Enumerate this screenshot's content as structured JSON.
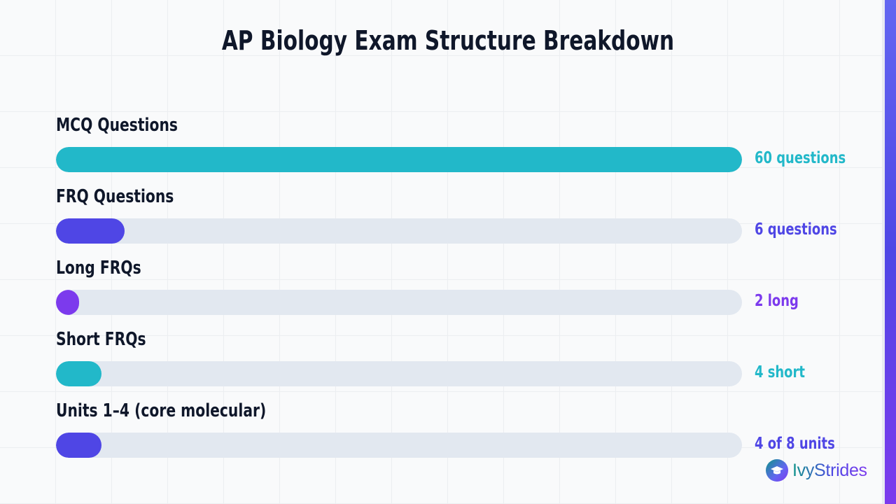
{
  "chart_data": {
    "type": "bar",
    "orientation": "horizontal",
    "title": "AP Biology Exam Structure Breakdown",
    "categories": [
      "MCQ Questions",
      "FRQ Questions",
      "Long FRQs",
      "Short FRQs",
      "Units 1–4 (core molecular)"
    ],
    "values": [
      60,
      6,
      2,
      4,
      4
    ],
    "value_labels": [
      "60 questions",
      "6 questions",
      "2 long",
      "4 short",
      "4 of 8 units"
    ],
    "max": [
      60,
      60,
      60,
      60,
      60
    ],
    "colors": [
      "#22b8c9",
      "#4f46e5",
      "#7c3aed",
      "#22b8c9",
      "#4f46e5"
    ],
    "track_color": "#e2e8f0",
    "grid": true,
    "legend": "none"
  },
  "brand": {
    "name": "IvyStrides",
    "icon": "graduation-cap-icon"
  }
}
